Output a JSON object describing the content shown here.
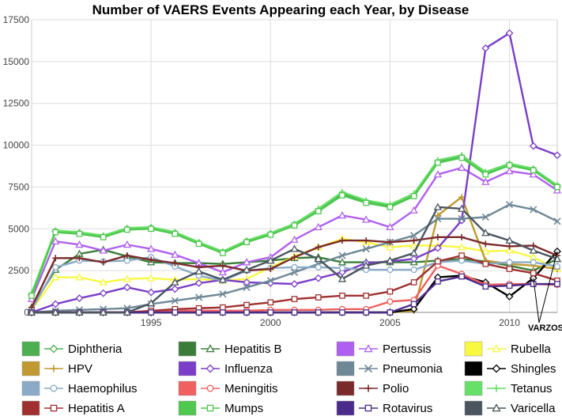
{
  "chart_data": {
    "type": "line",
    "title": "Number of VAERS Events Appearing each Year, by Disease",
    "xlabel": "",
    "ylabel": "",
    "xlim": [
      1990,
      2012
    ],
    "ylim": [
      0,
      17500
    ],
    "x_ticks": [
      "1995",
      "2000",
      "2005",
      "2010"
    ],
    "y_ticks": [
      "0",
      "2500",
      "5000",
      "7500",
      "10000",
      "12500",
      "15000",
      "17500"
    ],
    "grid": true,
    "legend_position": "bottom",
    "annotation": "VARZOS",
    "x": [
      1990,
      1991,
      1992,
      1993,
      1994,
      1995,
      1996,
      1997,
      1998,
      1999,
      2000,
      2001,
      2002,
      2003,
      2004,
      2005,
      2006,
      2007,
      2008,
      2009,
      2010,
      2011,
      2012
    ],
    "series": [
      {
        "name": "Diphtheria",
        "color": "#4caf50",
        "marker": "diamond",
        "values": [
          1050,
          4850,
          4750,
          4550,
          5000,
          5050,
          4750,
          4150,
          3600,
          4250,
          4700,
          5250,
          6100,
          7100,
          6600,
          6350,
          7000,
          9000,
          9300,
          8300,
          8850,
          8550,
          7550
        ]
      },
      {
        "name": "Hepatitis B",
        "color": "#3a7d3a",
        "marker": "triangle",
        "values": [
          300,
          2550,
          3500,
          3750,
          3350,
          3000,
          2950,
          2950,
          2900,
          3000,
          3100,
          3250,
          3300,
          3000,
          3000,
          3000,
          3000,
          3100,
          3200,
          3050,
          2800,
          2500,
          3200
        ]
      },
      {
        "name": "Pertussis",
        "color": "#b060f0",
        "marker": "triangle",
        "values": [
          800,
          4250,
          4050,
          3700,
          4050,
          3800,
          3450,
          2950,
          2400,
          3000,
          3300,
          4350,
          5100,
          5800,
          5550,
          5100,
          6100,
          8250,
          8650,
          7800,
          8450,
          8250,
          7300
        ]
      },
      {
        "name": "Rubella",
        "color": "#f8f840",
        "marker": "triangle",
        "values": [
          150,
          2100,
          2100,
          1800,
          2000,
          2050,
          1950,
          2000,
          1900,
          2000,
          2700,
          3350,
          3900,
          4400,
          4200,
          3900,
          4000,
          4000,
          3900,
          3650,
          3700,
          3300,
          2600
        ]
      },
      {
        "name": "HPV",
        "color": "#c09a30",
        "marker": "plus",
        "values": [
          0,
          0,
          0,
          0,
          0,
          0,
          0,
          0,
          0,
          0,
          0,
          0,
          0,
          0,
          0,
          0,
          100,
          5800,
          6900,
          3100,
          2900,
          2800,
          2600
        ]
      },
      {
        "name": "Influenza",
        "color": "#7a3ec8",
        "marker": "diamond",
        "values": [
          0,
          500,
          850,
          1150,
          1500,
          1200,
          1400,
          1750,
          1950,
          1800,
          1750,
          1700,
          2050,
          2400,
          2950,
          3050,
          3200,
          3850,
          5500,
          15800,
          16700,
          9950,
          9400
        ]
      },
      {
        "name": "Pneumonia",
        "color": "#6e8896",
        "marker": "x",
        "values": [
          0,
          100,
          150,
          200,
          250,
          500,
          700,
          900,
          1100,
          1500,
          1900,
          2400,
          2900,
          3400,
          3800,
          4200,
          4600,
          5600,
          5600,
          5700,
          6450,
          6150,
          5450
        ]
      },
      {
        "name": "Shingles",
        "color": "#000000",
        "marker": "diamond",
        "values": [
          0,
          0,
          0,
          0,
          0,
          0,
          0,
          0,
          0,
          0,
          0,
          0,
          0,
          0,
          0,
          0,
          200,
          2100,
          2200,
          1800,
          950,
          2050,
          3650
        ]
      },
      {
        "name": "Haemophilus",
        "color": "#8aaac8",
        "marker": "circle",
        "values": [
          150,
          2700,
          3100,
          3050,
          3100,
          3300,
          2750,
          2200,
          1900,
          2500,
          2650,
          2700,
          2700,
          2650,
          2550,
          2550,
          2550,
          3000,
          3100,
          2900,
          3000,
          3000,
          2750
        ]
      },
      {
        "name": "Meningitis",
        "color": "#f06060",
        "marker": "circle",
        "values": [
          0,
          0,
          0,
          0,
          0,
          100,
          100,
          100,
          100,
          100,
          150,
          150,
          150,
          200,
          200,
          650,
          750,
          2800,
          2300,
          1650,
          1700,
          1700,
          1650
        ]
      },
      {
        "name": "Polio",
        "color": "#7a2a2a",
        "marker": "plus",
        "values": [
          300,
          3250,
          3250,
          3000,
          3400,
          3150,
          2950,
          2700,
          2800,
          2500,
          2600,
          3300,
          3900,
          4300,
          4300,
          4200,
          4300,
          4500,
          4500,
          4100,
          3950,
          4000,
          3400
        ]
      },
      {
        "name": "Tetanus",
        "color": "#66e066",
        "marker": "plus",
        "values": [
          1150,
          4900,
          4800,
          4600,
          5050,
          5100,
          4800,
          4200,
          3650,
          4300,
          4750,
          5300,
          6200,
          7200,
          6700,
          6450,
          7100,
          9100,
          9400,
          8400,
          8900,
          8600,
          7600
        ]
      },
      {
        "name": "Hepatitis A",
        "color": "#a03030",
        "marker": "square",
        "values": [
          0,
          0,
          0,
          0,
          0,
          100,
          200,
          250,
          300,
          450,
          600,
          800,
          900,
          1000,
          1000,
          1250,
          1800,
          3050,
          3400,
          2900,
          2600,
          2350,
          1900
        ]
      },
      {
        "name": "Mumps",
        "color": "#50c850",
        "marker": "square",
        "values": [
          1000,
          4800,
          4700,
          4500,
          4950,
          5000,
          4700,
          4100,
          3550,
          4200,
          4650,
          5200,
          6050,
          7000,
          6550,
          6300,
          6950,
          8950,
          9250,
          8250,
          8800,
          8500,
          7500
        ]
      },
      {
        "name": "Rotavirus",
        "color": "#4c2b8a",
        "marker": "square",
        "values": [
          0,
          0,
          0,
          0,
          0,
          0,
          0,
          0,
          0,
          0,
          0,
          0,
          0,
          0,
          0,
          0,
          500,
          1850,
          2150,
          1550,
          1600,
          1700,
          1700
        ]
      },
      {
        "name": "Varicella",
        "color": "#4a5560",
        "marker": "triangle",
        "values": [
          0,
          0,
          0,
          0,
          0,
          550,
          1800,
          2450,
          1950,
          2550,
          3100,
          3800,
          3200,
          2000,
          2800,
          3100,
          3550,
          6300,
          6200,
          4750,
          4300,
          3700,
          3200
        ]
      }
    ]
  }
}
